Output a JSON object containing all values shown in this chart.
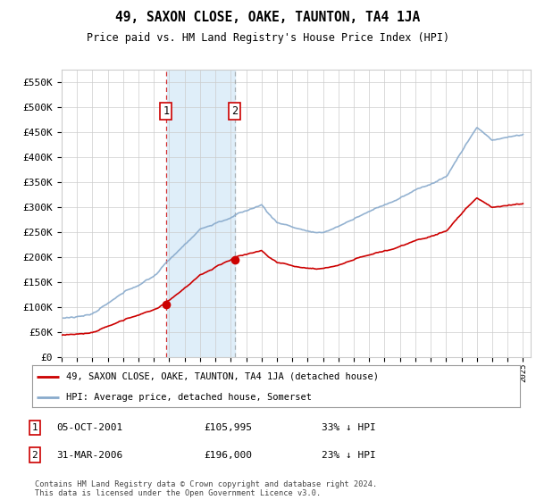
{
  "title": "49, SAXON CLOSE, OAKE, TAUNTON, TA4 1JA",
  "subtitle": "Price paid vs. HM Land Registry's House Price Index (HPI)",
  "ylim": [
    0,
    575000
  ],
  "yticks": [
    0,
    50000,
    100000,
    150000,
    200000,
    250000,
    300000,
    350000,
    400000,
    450000,
    500000,
    550000
  ],
  "ytick_labels": [
    "£0",
    "£50K",
    "£100K",
    "£150K",
    "£200K",
    "£250K",
    "£300K",
    "£350K",
    "£400K",
    "£450K",
    "£500K",
    "£550K"
  ],
  "sale1_date": 2001.792,
  "sale1_price": 105995,
  "sale2_date": 2006.25,
  "sale2_price": 196000,
  "legend_property": "49, SAXON CLOSE, OAKE, TAUNTON, TA4 1JA (detached house)",
  "legend_hpi": "HPI: Average price, detached house, Somerset",
  "table_row1": [
    "1",
    "05-OCT-2001",
    "£105,995",
    "33% ↓ HPI"
  ],
  "table_row2": [
    "2",
    "31-MAR-2006",
    "£196,000",
    "23% ↓ HPI"
  ],
  "footer": "Contains HM Land Registry data © Crown copyright and database right 2024.\nThis data is licensed under the Open Government Licence v3.0.",
  "property_color": "#cc0000",
  "hpi_color": "#88aacc",
  "shade_color": "#d8eaf8",
  "grid_color": "#cccccc",
  "dashed_color1": "#cc0000",
  "dashed_color2": "#888888"
}
